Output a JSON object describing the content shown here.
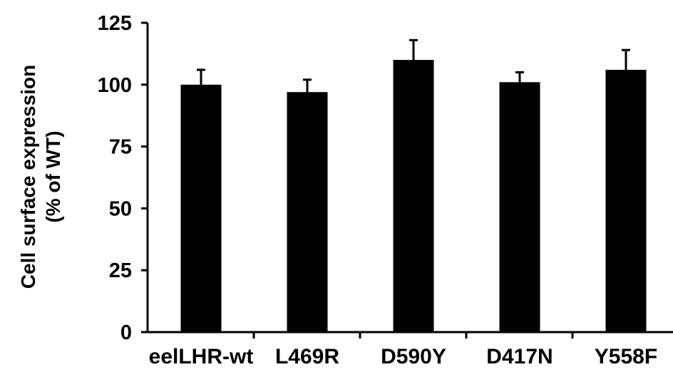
{
  "chart_data": {
    "type": "bar",
    "title": "",
    "xlabel": "",
    "ylabel": "Cell surface expression",
    "ylabel_line2": "(% of WT)",
    "categories": [
      "eelLHR-wt",
      "L469R",
      "D590Y",
      "D417N",
      "Y558F"
    ],
    "values": [
      100,
      97,
      110,
      101,
      106
    ],
    "error_bars": [
      6,
      5,
      8,
      4,
      8
    ],
    "ylim": [
      0,
      125
    ],
    "yticks": [
      0,
      25,
      50,
      75,
      100,
      125
    ],
    "ytick_labels": [
      "0",
      "25",
      "50",
      "75",
      "100",
      "125"
    ],
    "grid": false,
    "legend": "none",
    "bar_color": "#000000"
  }
}
